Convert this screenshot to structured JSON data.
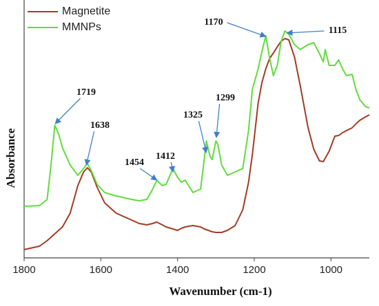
{
  "chart_data": {
    "type": "line",
    "xlabel": "Wavenumber (cm-1)",
    "ylabel": "Absorbance",
    "x": [
      1800,
      1760,
      1740,
      1730,
      1720,
      1710,
      1700,
      1680,
      1660,
      1645,
      1635,
      1625,
      1610,
      1590,
      1560,
      1520,
      1500,
      1480,
      1465,
      1454,
      1440,
      1430,
      1412,
      1400,
      1390,
      1380,
      1360,
      1340,
      1330,
      1325,
      1315,
      1310,
      1300,
      1295,
      1285,
      1270,
      1250,
      1230,
      1215,
      1205,
      1190,
      1180,
      1170,
      1160,
      1150,
      1140,
      1130,
      1120,
      1110,
      1095,
      1080,
      1060,
      1045,
      1030,
      1020,
      1015,
      1005,
      990,
      980,
      970,
      960,
      945,
      935,
      925,
      910,
      900
    ],
    "series": [
      {
        "name": "Magnetite",
        "color": "#a33a22",
        "values": [
          12,
          17,
          25,
          30,
          35,
          40,
          45,
          65,
          105,
          125,
          131,
          125,
          103,
          80,
          65,
          55,
          50,
          48,
          50,
          52,
          48,
          45,
          42,
          40,
          43,
          45,
          47,
          45,
          42,
          41,
          39,
          38,
          37,
          37,
          37,
          40,
          47,
          70,
          110,
          150,
          225,
          255,
          275,
          290,
          298,
          307,
          315,
          319,
          317,
          292,
          250,
          190,
          158,
          141,
          140,
          145,
          155,
          177,
          178,
          182,
          185,
          189,
          195,
          200,
          205,
          208
        ]
      },
      {
        "name": "MMNPs",
        "color": "#5fdc3c",
        "values": [
          75,
          76,
          85,
          135,
          193,
          180,
          160,
          135,
          120,
          130,
          137,
          127,
          107,
          95,
          90,
          85,
          83,
          85,
          100,
          113,
          105,
          107,
          130,
          117,
          110,
          113,
          95,
          100,
          145,
          170,
          147,
          143,
          170,
          165,
          135,
          120,
          125,
          130,
          185,
          245,
          275,
          300,
          323,
          290,
          265,
          280,
          315,
          330,
          325,
          310,
          303,
          310,
          313,
          297,
          285,
          303,
          280,
          280,
          288,
          275,
          265,
          267,
          245,
          230,
          220,
          218
        ]
      }
    ],
    "xlim": [
      1800,
      900
    ],
    "xticks": [
      1800,
      1600,
      1400,
      1200,
      1000
    ],
    "ylim": [
      0,
      370
    ],
    "annotations": [
      1719,
      1638,
      1454,
      1412,
      1325,
      1299,
      1170,
      1115
    ],
    "legend": "upper left"
  }
}
